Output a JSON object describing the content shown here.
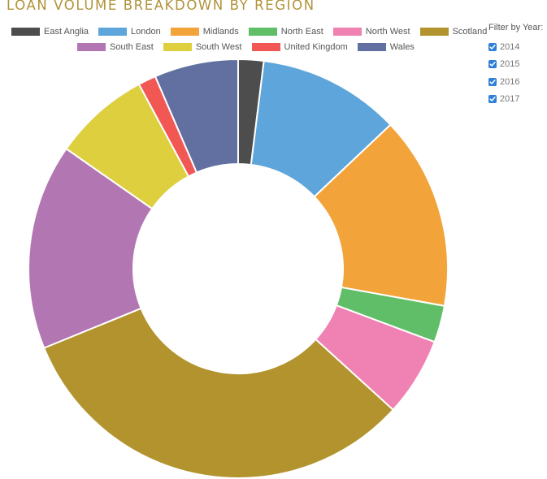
{
  "chart_data": {
    "type": "pie",
    "title": "LOAN VOLUME BREAKDOWN BY REGION",
    "hole": 0.5,
    "categories": [
      "East Anglia",
      "London",
      "Midlands",
      "North East",
      "North West",
      "Scotland",
      "South East",
      "South West",
      "United Kingdom",
      "Wales"
    ],
    "colors": [
      "#4d4d4d",
      "#5da5da",
      "#f2a43a",
      "#60be68",
      "#f081b3",
      "#b2932e",
      "#b277b2",
      "#decf3f",
      "#f15854",
      "#6170a0"
    ],
    "values": [
      2.0,
      11.2,
      15.2,
      2.9,
      6.2,
      32.7,
      16.2,
      7.6,
      1.4,
      6.6
    ],
    "legend_rows": [
      [
        "East Anglia",
        "London",
        "Midlands",
        "North East",
        "North West",
        "Scotland"
      ],
      [
        "South East",
        "South West",
        "United Kingdom",
        "Wales"
      ]
    ],
    "legend_position": "top"
  },
  "filter": {
    "title": "Filter by Year:",
    "years": [
      {
        "label": "2014",
        "checked": true
      },
      {
        "label": "2015",
        "checked": true
      },
      {
        "label": "2016",
        "checked": true
      },
      {
        "label": "2017",
        "checked": true
      }
    ]
  }
}
